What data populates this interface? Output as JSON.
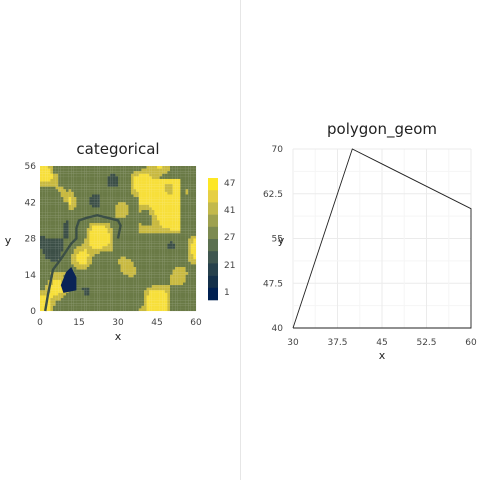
{
  "chart_data": [
    {
      "type": "heatmap",
      "title": "categorical",
      "xlabel": "x",
      "ylabel": "y",
      "xlim": [
        0,
        60
      ],
      "ylim": [
        0,
        56
      ],
      "xticks": [
        "0",
        "15",
        "30",
        "45",
        "60"
      ],
      "yticks": [
        "0",
        "14",
        "28",
        "42",
        "56"
      ],
      "legend": {
        "placement": "right",
        "labels": [
          "47",
          "41",
          "27",
          "21",
          "1"
        ],
        "colors": [
          "#fde725",
          "#e6cf43",
          "#c3b94c",
          "#9ea14f",
          "#7c8a50",
          "#5b7050",
          "#3f564f",
          "#27414c",
          "#14304a",
          "#002051"
        ]
      },
      "value_levels": [
        1,
        21,
        27,
        41,
        47
      ],
      "region_values": {
        "background": 27,
        "light_patches": 41,
        "bright_patches": 47,
        "dark_border": 21,
        "darkest_blob": 1
      }
    },
    {
      "type": "line",
      "title": "polygon_geom",
      "xlabel": "x",
      "ylabel": "y",
      "xlim": [
        30,
        60
      ],
      "ylim": [
        40,
        70
      ],
      "xticks": [
        "30",
        "37.5",
        "45",
        "52.5",
        "60"
      ],
      "yticks": [
        "40",
        "47.5",
        "55",
        "62.5",
        "70"
      ],
      "grid": true,
      "points": [
        [
          30,
          40
        ],
        [
          40,
          70
        ],
        [
          60,
          60
        ],
        [
          60,
          40
        ],
        [
          30,
          40
        ]
      ]
    }
  ]
}
